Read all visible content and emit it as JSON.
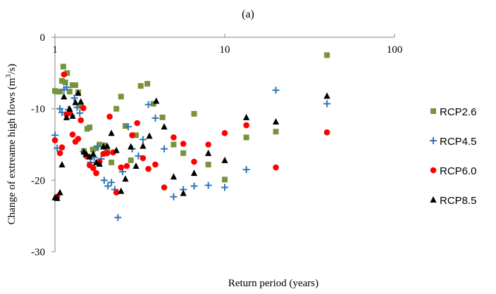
{
  "chart_data": {
    "type": "scatter",
    "title": "(a)",
    "xlabel": "Return period (years)",
    "ylabel": "Change of extreame high flows (m3/s)",
    "ylabel_parts": {
      "main": "Change of extreame high flows (m",
      "sup": "3",
      "tail": "/s)"
    },
    "x_scale": "log",
    "xlim": [
      1,
      100
    ],
    "ylim": [
      -30,
      0
    ],
    "x_ticks": [
      1,
      10,
      100
    ],
    "x_tick_labels": [
      "1",
      "10",
      "100"
    ],
    "y_ticks": [
      0,
      -10,
      -20,
      -30
    ],
    "y_tick_labels": [
      "0",
      "-10",
      "-20",
      "-30"
    ],
    "grid": false,
    "legend_position": "right",
    "series": [
      {
        "name": "RCP2.6",
        "marker": "square",
        "color": "#77933C",
        "points": [
          [
            1.0,
            -7.5
          ],
          [
            1.03,
            -7.6
          ],
          [
            1.07,
            -7.6
          ],
          [
            1.1,
            -6.1
          ],
          [
            1.12,
            -4.1
          ],
          [
            1.15,
            -6.3
          ],
          [
            1.18,
            -5.0
          ],
          [
            1.22,
            -7.6
          ],
          [
            1.27,
            -6.7
          ],
          [
            1.32,
            -6.7
          ],
          [
            1.37,
            -7.7
          ],
          [
            1.42,
            -9.6
          ],
          [
            1.48,
            -15.9
          ],
          [
            1.55,
            -12.8
          ],
          [
            1.6,
            -12.6
          ],
          [
            1.67,
            -15.7
          ],
          [
            1.75,
            -15.5
          ],
          [
            1.83,
            -15.0
          ],
          [
            1.93,
            -15.1
          ],
          [
            2.03,
            -16.0
          ],
          [
            2.15,
            -17.5
          ],
          [
            2.3,
            -10.0
          ],
          [
            2.45,
            -8.3
          ],
          [
            2.6,
            -12.4
          ],
          [
            2.8,
            -17.2
          ],
          [
            3.0,
            -13.7
          ],
          [
            3.2,
            -6.8
          ],
          [
            3.5,
            -6.5
          ],
          [
            3.8,
            -9.3
          ],
          [
            4.3,
            -11.2
          ],
          [
            5.0,
            -15.0
          ],
          [
            5.7,
            -16.2
          ],
          [
            6.6,
            -10.7
          ],
          [
            8.0,
            -17.8
          ],
          [
            10.0,
            -19.9
          ],
          [
            13.4,
            -14.0
          ],
          [
            20.0,
            -13.2
          ],
          [
            40.0,
            -2.5
          ]
        ]
      },
      {
        "name": "RCP4.5",
        "marker": "plus",
        "color": "#2E75B6",
        "points": [
          [
            1.0,
            -13.7
          ],
          [
            1.03,
            -15.5
          ],
          [
            1.07,
            -10.0
          ],
          [
            1.1,
            -10.5
          ],
          [
            1.13,
            -7.3
          ],
          [
            1.17,
            -7.0
          ],
          [
            1.2,
            -10.1
          ],
          [
            1.25,
            -10.9
          ],
          [
            1.3,
            -8.5
          ],
          [
            1.35,
            -9.8
          ],
          [
            1.4,
            -10.6
          ],
          [
            1.47,
            -16.0
          ],
          [
            1.53,
            -16.6
          ],
          [
            1.62,
            -17.5
          ],
          [
            1.7,
            -16.8
          ],
          [
            1.78,
            -15.3
          ],
          [
            1.87,
            -17.0
          ],
          [
            1.95,
            -20.0
          ],
          [
            2.05,
            -20.8
          ],
          [
            2.15,
            -20.3
          ],
          [
            2.25,
            -21.3
          ],
          [
            2.35,
            -25.2
          ],
          [
            2.5,
            -18.8
          ],
          [
            2.7,
            -12.5
          ],
          [
            2.85,
            -15.6
          ],
          [
            3.1,
            -16.6
          ],
          [
            3.3,
            -14.3
          ],
          [
            3.55,
            -9.4
          ],
          [
            3.9,
            -11.3
          ],
          [
            4.4,
            -15.6
          ],
          [
            5.0,
            -22.3
          ],
          [
            5.7,
            -21.3
          ],
          [
            6.6,
            -20.8
          ],
          [
            8.0,
            -20.7
          ],
          [
            10.0,
            -21.0
          ],
          [
            13.4,
            -18.5
          ],
          [
            20.0,
            -7.4
          ],
          [
            40.0,
            -9.3
          ]
        ]
      },
      {
        "name": "RCP6.0",
        "marker": "circle",
        "color": "#FF0000",
        "points": [
          [
            1.0,
            -14.4
          ],
          [
            1.03,
            -22.3
          ],
          [
            1.07,
            -16.2
          ],
          [
            1.1,
            -15.4
          ],
          [
            1.13,
            -5.2
          ],
          [
            1.17,
            -10.8
          ],
          [
            1.22,
            -10.5
          ],
          [
            1.27,
            -13.6
          ],
          [
            1.32,
            -14.6
          ],
          [
            1.37,
            -14.2
          ],
          [
            1.42,
            -11.6
          ],
          [
            1.47,
            -9.9
          ],
          [
            1.53,
            -16.6
          ],
          [
            1.6,
            -17.9
          ],
          [
            1.68,
            -18.3
          ],
          [
            1.75,
            -19.0
          ],
          [
            1.83,
            -17.4
          ],
          [
            1.93,
            -16.3
          ],
          [
            2.03,
            -16.2
          ],
          [
            2.1,
            -11.1
          ],
          [
            2.2,
            -16.1
          ],
          [
            2.3,
            -21.7
          ],
          [
            2.45,
            -18.2
          ],
          [
            2.65,
            -18.0
          ],
          [
            2.85,
            -13.7
          ],
          [
            3.05,
            -12.0
          ],
          [
            3.3,
            -16.9
          ],
          [
            3.55,
            -18.4
          ],
          [
            3.9,
            -17.8
          ],
          [
            4.4,
            -21.0
          ],
          [
            5.0,
            -14.0
          ],
          [
            5.7,
            -14.9
          ],
          [
            6.6,
            -17.4
          ],
          [
            8.0,
            -15.0
          ],
          [
            10.0,
            -13.4
          ],
          [
            13.4,
            -12.3
          ],
          [
            20.0,
            -18.2
          ],
          [
            40.0,
            -13.3
          ]
        ]
      },
      {
        "name": "RCP8.5",
        "marker": "triangle",
        "color": "#000000",
        "points": [
          [
            1.0,
            -22.4
          ],
          [
            1.03,
            -22.5
          ],
          [
            1.07,
            -21.7
          ],
          [
            1.1,
            -17.8
          ],
          [
            1.13,
            -8.3
          ],
          [
            1.17,
            -11.2
          ],
          [
            1.22,
            -10.0
          ],
          [
            1.27,
            -11.0
          ],
          [
            1.32,
            -9.1
          ],
          [
            1.37,
            -7.8
          ],
          [
            1.42,
            -9.0
          ],
          [
            1.48,
            -16.0
          ],
          [
            1.53,
            -16.3
          ],
          [
            1.6,
            -16.7
          ],
          [
            1.68,
            -16.3
          ],
          [
            1.75,
            -17.5
          ],
          [
            1.83,
            -17.7
          ],
          [
            1.93,
            -15.3
          ],
          [
            2.03,
            -15.2
          ],
          [
            2.15,
            -13.4
          ],
          [
            2.3,
            -15.8
          ],
          [
            2.45,
            -21.5
          ],
          [
            2.6,
            -19.8
          ],
          [
            2.8,
            -15.3
          ],
          [
            3.0,
            -18.0
          ],
          [
            3.3,
            -15.2
          ],
          [
            3.6,
            -13.8
          ],
          [
            3.95,
            -8.9
          ],
          [
            4.4,
            -12.5
          ],
          [
            5.0,
            -19.5
          ],
          [
            5.7,
            -21.8
          ],
          [
            6.6,
            -19.0
          ],
          [
            8.0,
            -16.2
          ],
          [
            10.0,
            -17.2
          ],
          [
            13.4,
            -11.2
          ],
          [
            20.0,
            -11.8
          ],
          [
            40.0,
            -8.2
          ]
        ]
      }
    ]
  }
}
